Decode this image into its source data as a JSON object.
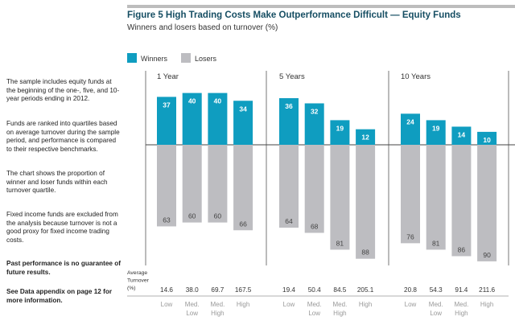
{
  "title": "Figure 5 High Trading Costs Make Outperformance Difficult — Equity Funds",
  "subtitle": "Winners and losers based on turnover (%)",
  "notes": [
    {
      "text": "The sample includes equity funds at the beginning of the one-, five, and 10-year periods ending in 2012.",
      "bold": false
    },
    {
      "text": "Funds are ranked into quartiles based on average turnover during the sample period, and performance is compared to their respective benchmarks.",
      "bold": false
    },
    {
      "text": "The chart shows the proportion of winner and loser funds within each turnover quartile.",
      "bold": false
    },
    {
      "text": "Fixed income funds are excluded from the analysis because turnover is not a good proxy for fixed income trading costs.",
      "bold": false
    },
    {
      "text": "Past performance is no guarantee of future results.",
      "bold": true
    },
    {
      "text": "See Data appendix on page 12 for more information.",
      "bold": true
    }
  ],
  "chart_data": {
    "type": "bar",
    "legend": {
      "placement": "top-left",
      "entries": [
        "Winners",
        "Losers"
      ]
    },
    "colors": {
      "Winners": "#0f9dc0",
      "Losers": "#bdbdc1"
    },
    "turnover_label": [
      "Average",
      "Turnover",
      "(%)"
    ],
    "categories": [
      [
        "Low"
      ],
      [
        "Med.",
        "Low"
      ],
      [
        "Med.",
        "High"
      ],
      [
        "High"
      ]
    ],
    "panels": [
      {
        "label": "1 Year",
        "winners": [
          37,
          40,
          40,
          34
        ],
        "losers": [
          63,
          60,
          60,
          66
        ],
        "turnover": [
          "14.6",
          "38.0",
          "69.7",
          "167.5"
        ]
      },
      {
        "label": "5 Years",
        "winners": [
          36,
          32,
          19,
          12
        ],
        "losers": [
          64,
          68,
          81,
          88
        ],
        "turnover": [
          "19.4",
          "50.4",
          "84.5",
          "205.1"
        ]
      },
      {
        "label": "10 Years",
        "winners": [
          24,
          19,
          14,
          10
        ],
        "losers": [
          76,
          81,
          86,
          90
        ],
        "turnover": [
          "20.8",
          "54.3",
          "91.4",
          "211.6"
        ]
      }
    ]
  }
}
